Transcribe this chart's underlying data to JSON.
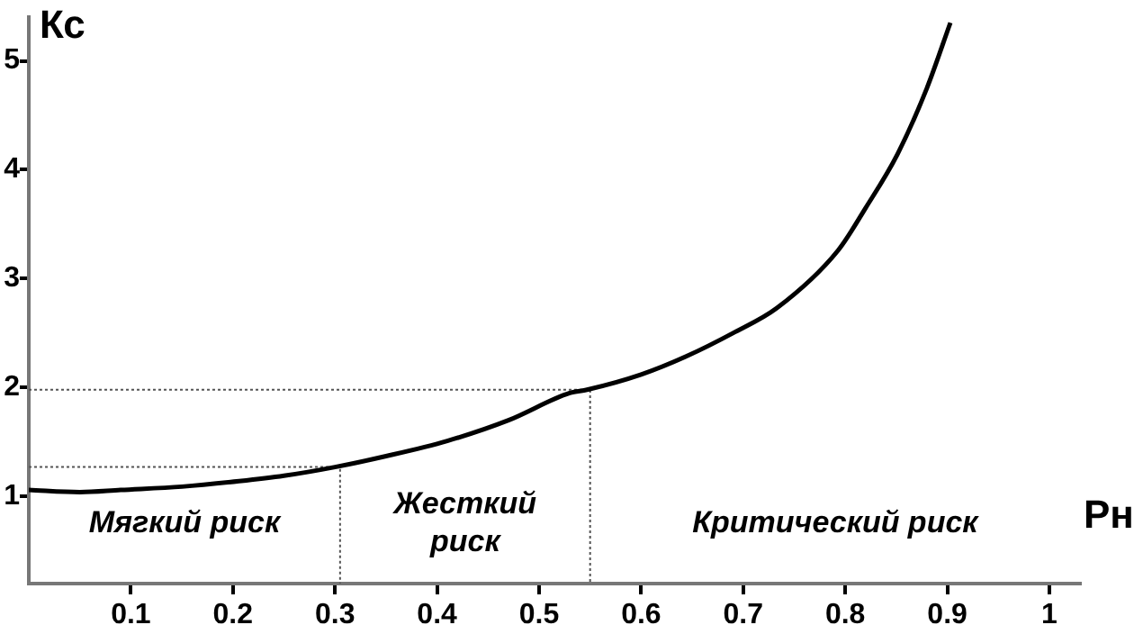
{
  "chart_data": {
    "type": "line",
    "xlabel": "Рн",
    "ylabel": "Кс",
    "xlim": [
      0,
      1.03
    ],
    "xticks": [
      0.1,
      0.2,
      0.3,
      0.4,
      0.5,
      0.6,
      0.7,
      0.8,
      0.9,
      1
    ],
    "ylim": [
      0.2,
      5.4
    ],
    "yticks": [
      1,
      2,
      3,
      4,
      5
    ],
    "grid": false,
    "legend": false,
    "marker": "none",
    "series": [
      {
        "color": "#000000",
        "line_style": "solid",
        "x": [
          0,
          0.05,
          0.09,
          0.15,
          0.206,
          0.25,
          0.3,
          0.35,
          0.41,
          0.47,
          0.53,
          0.547,
          0.6,
          0.645,
          0.69,
          0.733,
          0.793,
          0.82,
          0.851,
          0.88,
          0.903
        ],
        "values": [
          1.06,
          1.04,
          1.06,
          1.09,
          1.14,
          1.19,
          1.27,
          1.37,
          1.51,
          1.7,
          1.95,
          1.98,
          2.12,
          2.29,
          2.5,
          2.73,
          3.26,
          3.65,
          4.14,
          4.75,
          5.35
        ]
      },
      {
        "color": "#555555",
        "line_style": "dotted",
        "x": [
          0,
          0.305,
          0.305
        ],
        "values": [
          1.27,
          1.27,
          0.2
        ]
      },
      {
        "color": "#555555",
        "line_style": "dotted",
        "x": [
          0,
          0.55,
          0.55
        ],
        "values": [
          1.98,
          1.98,
          0.2
        ]
      }
    ],
    "annotations": [
      "Мягкий риск",
      "Жесткий\nриск",
      "Критический риск"
    ]
  }
}
